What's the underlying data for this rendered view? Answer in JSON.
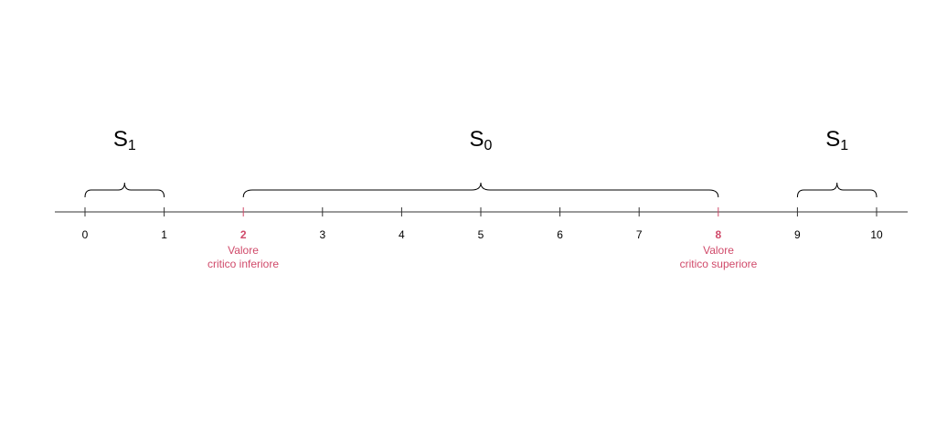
{
  "axis": {
    "min": 0,
    "max": 10,
    "ticks": [
      0,
      1,
      2,
      3,
      4,
      5,
      6,
      7,
      8,
      9,
      10
    ],
    "critical_ticks": [
      2,
      8
    ]
  },
  "colors": {
    "axis": "#333333",
    "text": "#000000",
    "critical": "#d04a6a"
  },
  "regions": [
    {
      "id": "left",
      "label_base": "S",
      "label_sub": "1",
      "from": 0,
      "to": 1
    },
    {
      "id": "center",
      "label_base": "S",
      "label_sub": "0",
      "from": 2,
      "to": 8
    },
    {
      "id": "right",
      "label_base": "S",
      "label_sub": "1",
      "from": 9,
      "to": 10
    }
  ],
  "critical_labels": {
    "lower": {
      "value": 2,
      "line1": "Valore",
      "line2": "critico inferiore"
    },
    "upper": {
      "value": 8,
      "line1": "Valore",
      "line2": "critico superiore"
    }
  }
}
